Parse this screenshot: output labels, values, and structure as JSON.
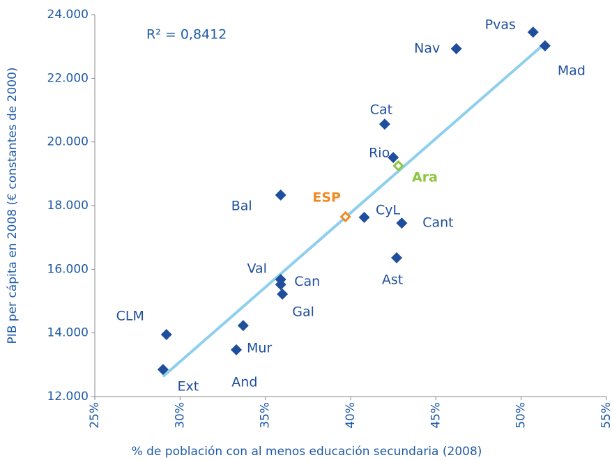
{
  "chart_data": {
    "type": "scatter",
    "x_label": "% de población con al menos educación secundaria (2008)",
    "y_label": "PIB per cápita en 2008 (€ constantes de 2000)",
    "annotation": "R² = 0,8412",
    "xlim": [
      25,
      55
    ],
    "xticks": [
      {
        "value": 25,
        "label": "25%"
      },
      {
        "value": 30,
        "label": "30%"
      },
      {
        "value": 35,
        "label": "35%"
      },
      {
        "value": 40,
        "label": "40%"
      },
      {
        "value": 45,
        "label": "45%"
      },
      {
        "value": 50,
        "label": "50%"
      },
      {
        "value": 55,
        "label": "55%"
      }
    ],
    "ylim": [
      12000,
      24000
    ],
    "yticks": [
      {
        "value": 12000,
        "label": "12.000"
      },
      {
        "value": 14000,
        "label": "14.000"
      },
      {
        "value": 16000,
        "label": "16.000"
      },
      {
        "value": 18000,
        "label": "18.000"
      },
      {
        "value": 20000,
        "label": "20.000"
      },
      {
        "value": 22000,
        "label": "22.000"
      },
      {
        "value": 24000,
        "label": "24.000"
      }
    ],
    "series": [
      {
        "color": "#1f4e9c",
        "labels": [
          "Pvas",
          "Mad",
          "Nav",
          "Cat",
          "Rio",
          "Ara",
          "ESP",
          "CyL",
          "Cant",
          "Ast",
          "Bal",
          "Val",
          "Can",
          "Gal",
          "CLM",
          "Mur",
          "And",
          "Ext"
        ],
        "point_colors": [
          "#1f4e9c",
          "#1f4e9c",
          "#1f4e9c",
          "#1f4e9c",
          "#1f4e9c",
          "#8dc63f",
          "#f08a24",
          "#1f4e9c",
          "#1f4e9c",
          "#1f4e9c",
          "#1f4e9c",
          "#1f4e9c",
          "#1f4e9c",
          "#1f4e9c",
          "#1f4e9c",
          "#1f4e9c",
          "#1f4e9c",
          "#1f4e9c"
        ],
        "x": [
          50.7,
          51.4,
          46.2,
          42.0,
          42.5,
          42.8,
          39.7,
          40.8,
          43.0,
          42.7,
          35.9,
          35.9,
          35.9,
          36.0,
          29.2,
          33.3,
          33.7,
          29.0
        ],
        "values": [
          23450,
          23020,
          22930,
          20560,
          19510,
          19250,
          17650,
          17630,
          17450,
          16360,
          18330,
          15680,
          15520,
          15220,
          13950,
          13470,
          14230,
          12850
        ]
      }
    ],
    "trendline": {
      "color": "#8ecfee",
      "x": [
        29.0,
        51.4
      ],
      "values": [
        12630,
        23100
      ]
    }
  }
}
